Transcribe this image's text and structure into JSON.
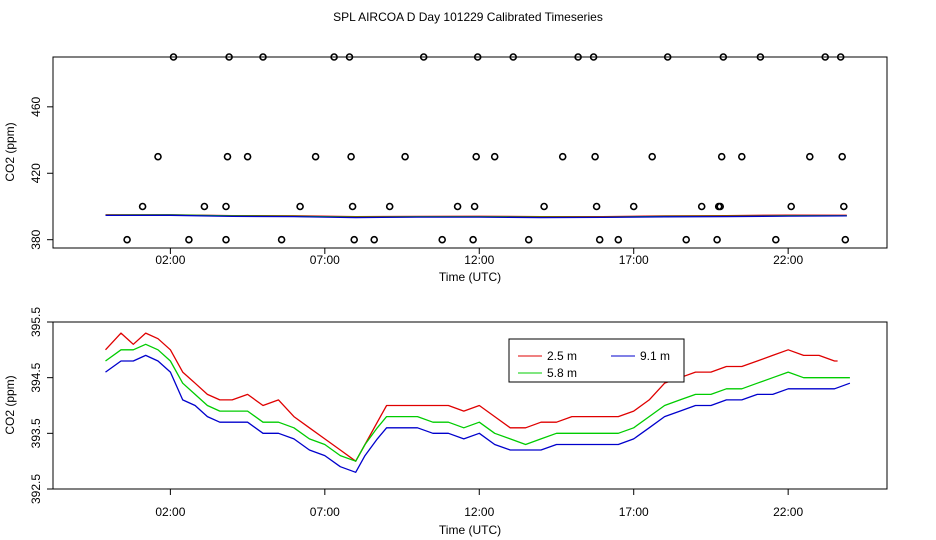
{
  "title": "SPL AIRCOA D  Day 101229  Calibrated Timeseries",
  "chart_data": [
    {
      "type": "scatter",
      "panel": "top",
      "xlabel": "Time (UTC)",
      "ylabel": "CO2 (ppm)",
      "xlim": [
        -1.8,
        25.2
      ],
      "ylim": [
        375,
        490
      ],
      "xticks": [
        2,
        7,
        12,
        17,
        22
      ],
      "xtick_labels": [
        "02:00",
        "07:00",
        "12:00",
        "17:00",
        "22:00"
      ],
      "yticks": [
        380,
        420,
        460
      ],
      "ytick_labels": [
        "380",
        "420",
        "460"
      ],
      "grid": false,
      "points": [
        {
          "x": 0.6,
          "y": 380
        },
        {
          "x": 1.1,
          "y": 400
        },
        {
          "x": 1.6,
          "y": 430
        },
        {
          "x": 2.1,
          "y": 490
        },
        {
          "x": 2.6,
          "y": 380
        },
        {
          "x": 3.1,
          "y": 400
        },
        {
          "x": 3.8,
          "y": 400
        },
        {
          "x": 3.8,
          "y": 380
        },
        {
          "x": 3.85,
          "y": 430
        },
        {
          "x": 3.9,
          "y": 490
        },
        {
          "x": 4.5,
          "y": 430
        },
        {
          "x": 5.0,
          "y": 490
        },
        {
          "x": 5.6,
          "y": 380
        },
        {
          "x": 6.2,
          "y": 400
        },
        {
          "x": 6.7,
          "y": 430
        },
        {
          "x": 7.3,
          "y": 490
        },
        {
          "x": 7.8,
          "y": 490
        },
        {
          "x": 7.85,
          "y": 430
        },
        {
          "x": 7.9,
          "y": 400
        },
        {
          "x": 7.95,
          "y": 380
        },
        {
          "x": 8.6,
          "y": 380
        },
        {
          "x": 9.1,
          "y": 400
        },
        {
          "x": 9.6,
          "y": 430
        },
        {
          "x": 10.2,
          "y": 490
        },
        {
          "x": 10.8,
          "y": 380
        },
        {
          "x": 11.3,
          "y": 400
        },
        {
          "x": 11.8,
          "y": 380
        },
        {
          "x": 11.85,
          "y": 400
        },
        {
          "x": 11.9,
          "y": 430
        },
        {
          "x": 11.95,
          "y": 490
        },
        {
          "x": 12.5,
          "y": 430
        },
        {
          "x": 13.1,
          "y": 490
        },
        {
          "x": 13.6,
          "y": 380
        },
        {
          "x": 14.1,
          "y": 400
        },
        {
          "x": 14.7,
          "y": 430
        },
        {
          "x": 15.2,
          "y": 490
        },
        {
          "x": 15.7,
          "y": 490
        },
        {
          "x": 15.75,
          "y": 430
        },
        {
          "x": 15.8,
          "y": 400
        },
        {
          "x": 15.9,
          "y": 380
        },
        {
          "x": 16.5,
          "y": 380
        },
        {
          "x": 17.0,
          "y": 400
        },
        {
          "x": 17.6,
          "y": 430
        },
        {
          "x": 18.1,
          "y": 490
        },
        {
          "x": 18.7,
          "y": 380
        },
        {
          "x": 19.2,
          "y": 400
        },
        {
          "x": 19.7,
          "y": 380
        },
        {
          "x": 19.75,
          "y": 400
        },
        {
          "x": 19.8,
          "y": 400
        },
        {
          "x": 19.85,
          "y": 430
        },
        {
          "x": 19.9,
          "y": 490
        },
        {
          "x": 20.5,
          "y": 430
        },
        {
          "x": 21.1,
          "y": 490
        },
        {
          "x": 21.6,
          "y": 380
        },
        {
          "x": 22.1,
          "y": 400
        },
        {
          "x": 22.7,
          "y": 430
        },
        {
          "x": 23.2,
          "y": 490
        },
        {
          "x": 23.7,
          "y": 490
        },
        {
          "x": 23.75,
          "y": 430
        },
        {
          "x": 23.8,
          "y": 400
        },
        {
          "x": 23.85,
          "y": 380
        }
      ],
      "series": [
        {
          "name": "2.5 m",
          "color": "#df0000",
          "x": [
            -0.1,
            2.0,
            4.0,
            6.0,
            8.0,
            10.0,
            12.0,
            14.0,
            16.0,
            18.0,
            20.0,
            22.0,
            23.9
          ],
          "y": [
            395.0,
            395.0,
            394.5,
            394.4,
            393.9,
            394.0,
            394.1,
            393.9,
            393.9,
            394.3,
            394.5,
            394.8,
            394.7
          ]
        },
        {
          "name": "5.8 m",
          "color": "#00cc00",
          "x": [
            -0.1,
            2.0,
            4.0,
            6.0,
            8.0,
            10.0,
            12.0,
            14.0,
            16.0,
            18.0,
            20.0,
            22.0,
            23.9
          ],
          "y": [
            394.8,
            394.9,
            394.3,
            394.1,
            393.6,
            393.8,
            393.8,
            393.6,
            393.6,
            394.0,
            394.1,
            394.4,
            394.4
          ]
        },
        {
          "name": "9.1 m",
          "color": "#0000cc",
          "x": [
            -0.1,
            2.0,
            4.0,
            6.0,
            8.0,
            10.0,
            12.0,
            14.0,
            16.0,
            18.0,
            20.0,
            22.0,
            23.9
          ],
          "y": [
            394.6,
            394.7,
            394.0,
            393.9,
            393.3,
            393.6,
            393.6,
            393.3,
            393.4,
            393.8,
            393.9,
            394.2,
            394.3
          ]
        }
      ]
    },
    {
      "type": "line",
      "panel": "bottom",
      "xlabel": "Time (UTC)",
      "ylabel": "CO2 (ppm)",
      "xlim": [
        -1.8,
        25.2
      ],
      "ylim": [
        392.5,
        395.5
      ],
      "xticks": [
        2,
        7,
        12,
        17,
        22
      ],
      "xtick_labels": [
        "02:00",
        "07:00",
        "12:00",
        "17:00",
        "22:00"
      ],
      "yticks": [
        392.5,
        393.5,
        394.5,
        395.5
      ],
      "ytick_labels": [
        "392.5",
        "393.5",
        "394.5",
        "395.5"
      ],
      "grid": false,
      "legend": "top-center",
      "series": [
        {
          "name": "2.5 m",
          "color": "#df0000",
          "x": [
            -0.1,
            0.4,
            0.8,
            1.2,
            1.6,
            2.0,
            2.4,
            2.8,
            3.2,
            3.6,
            4.0,
            4.5,
            5.0,
            5.5,
            6.0,
            6.5,
            7.0,
            7.5,
            8.0,
            8.3,
            8.7,
            9.0,
            9.5,
            10.0,
            10.5,
            11.0,
            11.5,
            12.0,
            12.5,
            13.0,
            13.5,
            14.0,
            14.5,
            15.0,
            15.5,
            16.0,
            16.5,
            17.0,
            17.5,
            18.0,
            18.5,
            19.0,
            19.5,
            20.0,
            20.5,
            21.0,
            21.5,
            22.0,
            22.5,
            23.0,
            23.5,
            23.6
          ],
          "y": [
            395.0,
            395.3,
            395.1,
            395.3,
            395.2,
            395.0,
            394.6,
            394.4,
            394.2,
            394.1,
            394.1,
            394.2,
            394.0,
            394.1,
            393.8,
            393.6,
            393.4,
            393.2,
            393.0,
            393.3,
            393.7,
            394.0,
            394.0,
            394.0,
            394.0,
            394.0,
            393.9,
            394.0,
            393.8,
            393.6,
            393.6,
            393.7,
            393.7,
            393.8,
            393.8,
            393.8,
            393.8,
            393.9,
            394.1,
            394.4,
            394.5,
            394.6,
            394.6,
            394.7,
            394.7,
            394.8,
            394.9,
            395.0,
            394.9,
            394.9,
            394.8,
            394.8
          ]
        },
        {
          "name": "5.8 m",
          "color": "#00cc00",
          "x": [
            -0.1,
            0.4,
            0.8,
            1.2,
            1.6,
            2.0,
            2.4,
            2.8,
            3.2,
            3.6,
            4.0,
            4.5,
            5.0,
            5.5,
            6.0,
            6.5,
            7.0,
            7.5,
            8.0,
            8.3,
            8.7,
            9.0,
            9.5,
            10.0,
            10.5,
            11.0,
            11.5,
            12.0,
            12.5,
            13.0,
            13.5,
            14.0,
            14.5,
            15.0,
            15.5,
            16.0,
            16.5,
            17.0,
            17.5,
            18.0,
            18.5,
            19.0,
            19.5,
            20.0,
            20.5,
            21.0,
            21.5,
            22.0,
            22.5,
            23.0,
            23.5,
            24.0
          ],
          "y": [
            394.8,
            395.0,
            395.0,
            395.1,
            395.0,
            394.8,
            394.4,
            394.2,
            394.0,
            393.9,
            393.9,
            393.9,
            393.7,
            393.7,
            393.6,
            393.4,
            393.3,
            393.1,
            393.0,
            393.3,
            393.6,
            393.8,
            393.8,
            393.8,
            393.7,
            393.7,
            393.6,
            393.7,
            393.5,
            393.4,
            393.3,
            393.4,
            393.5,
            393.5,
            393.5,
            393.5,
            393.5,
            393.6,
            393.8,
            394.0,
            394.1,
            394.2,
            394.2,
            394.3,
            394.3,
            394.4,
            394.5,
            394.6,
            394.5,
            394.5,
            394.5,
            394.5
          ]
        },
        {
          "name": "9.1 m",
          "color": "#0000cc",
          "x": [
            -0.1,
            0.4,
            0.8,
            1.2,
            1.6,
            2.0,
            2.4,
            2.8,
            3.2,
            3.6,
            4.0,
            4.5,
            5.0,
            5.5,
            6.0,
            6.5,
            7.0,
            7.5,
            8.0,
            8.3,
            8.7,
            9.0,
            9.5,
            10.0,
            10.5,
            11.0,
            11.5,
            12.0,
            12.5,
            13.0,
            13.5,
            14.0,
            14.5,
            15.0,
            15.5,
            16.0,
            16.5,
            17.0,
            17.5,
            18.0,
            18.5,
            19.0,
            19.5,
            20.0,
            20.5,
            21.0,
            21.5,
            22.0,
            22.5,
            23.0,
            23.5,
            24.0
          ],
          "y": [
            394.6,
            394.8,
            394.8,
            394.9,
            394.8,
            394.6,
            394.1,
            394.0,
            393.8,
            393.7,
            393.7,
            393.7,
            393.5,
            393.5,
            393.4,
            393.2,
            393.1,
            392.9,
            392.8,
            393.1,
            393.4,
            393.6,
            393.6,
            393.6,
            393.5,
            393.5,
            393.4,
            393.5,
            393.3,
            393.2,
            393.2,
            393.2,
            393.3,
            393.3,
            393.3,
            393.3,
            393.3,
            393.4,
            393.6,
            393.8,
            393.9,
            394.0,
            394.0,
            394.1,
            394.1,
            394.2,
            394.2,
            394.3,
            394.3,
            394.3,
            394.3,
            394.4
          ]
        }
      ]
    }
  ]
}
